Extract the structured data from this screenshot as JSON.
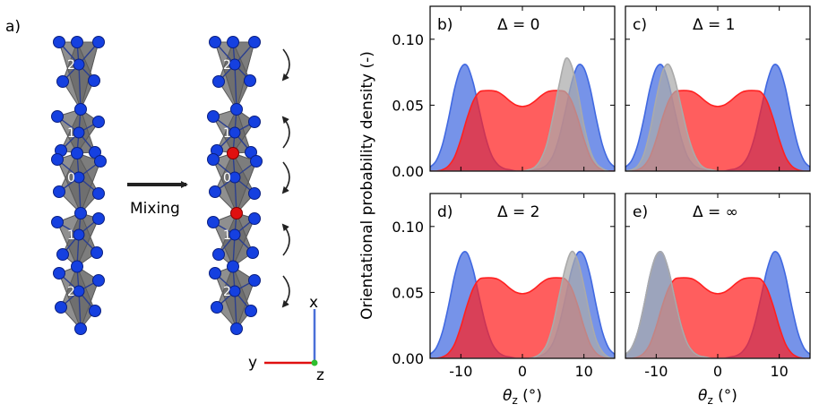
{
  "figure": {
    "panel_a_label": "a)",
    "mixing_label": "Mixing",
    "axes_triad": {
      "x_label": "x",
      "y_label": "y",
      "z_label": "z"
    },
    "chain_left_labels": [
      "2",
      "1",
      "0",
      "1",
      "2"
    ],
    "chain_right_labels": [
      "2",
      "1",
      "0",
      "1",
      "2"
    ],
    "colors": {
      "atom": "#1540e0",
      "highlight_atom": "#e01010",
      "octahedron": "#808080",
      "x_axis": "#4a6fd8",
      "y_axis": "#e01010",
      "z_axis": "#2fbf2f"
    }
  },
  "chart_data": [
    {
      "type": "area",
      "panel": "b)",
      "annotation": "Δ = 0",
      "ylabel": "Orientational probability density (-)",
      "xlabel": "θz (°)",
      "xlim": [
        -15,
        15
      ],
      "ylim": [
        0,
        0.125
      ],
      "xticks": [
        -10,
        0,
        10
      ],
      "yticks": [
        0.0,
        0.05,
        0.1
      ],
      "x": [
        -15,
        -14,
        -13,
        -12,
        -11,
        -10,
        -9,
        -8,
        -7,
        -6,
        -5,
        -4,
        -3,
        -2,
        -1,
        0,
        1,
        2,
        3,
        4,
        5,
        6,
        7,
        8,
        9,
        10,
        11,
        12,
        13,
        14,
        15
      ],
      "series": [
        {
          "color": "#4169e1",
          "values": [
            0.003,
            0.008,
            0.02,
            0.04,
            0.063,
            0.078,
            0.08,
            0.067,
            0.046,
            0.026,
            0.012,
            0.005,
            0.002,
            0.001,
            0.0,
            0.0,
            0.0,
            0.001,
            0.002,
            0.005,
            0.012,
            0.026,
            0.046,
            0.067,
            0.08,
            0.078,
            0.063,
            0.04,
            0.02,
            0.008,
            0.003
          ]
        },
        {
          "color": "#ff2020",
          "values": [
            0.0,
            0.0,
            0.001,
            0.004,
            0.011,
            0.024,
            0.04,
            0.053,
            0.06,
            0.061,
            0.061,
            0.06,
            0.057,
            0.053,
            0.05,
            0.049,
            0.05,
            0.053,
            0.057,
            0.06,
            0.061,
            0.061,
            0.06,
            0.053,
            0.04,
            0.024,
            0.011,
            0.004,
            0.001,
            0.0,
            0.0
          ]
        },
        {
          "color": "#aaaaaa",
          "values": [
            0.0,
            0.0,
            0.0,
            0.0,
            0.0,
            0.0,
            0.0,
            0.0,
            0.0,
            0.0,
            0.0,
            0.0,
            0.0,
            0.0,
            0.0,
            0.0,
            0.001,
            0.003,
            0.009,
            0.021,
            0.042,
            0.066,
            0.085,
            0.08,
            0.06,
            0.035,
            0.016,
            0.006,
            0.002,
            0.0,
            0.0
          ]
        }
      ]
    },
    {
      "type": "area",
      "panel": "c)",
      "annotation": "Δ = 1",
      "ylabel": "",
      "xlabel": "θz (°)",
      "xlim": [
        -15,
        15
      ],
      "ylim": [
        0,
        0.125
      ],
      "xticks": [
        -10,
        0,
        10
      ],
      "yticks": [
        0.0,
        0.05,
        0.1
      ],
      "x": [
        -15,
        -14,
        -13,
        -12,
        -11,
        -10,
        -9,
        -8,
        -7,
        -6,
        -5,
        -4,
        -3,
        -2,
        -1,
        0,
        1,
        2,
        3,
        4,
        5,
        6,
        7,
        8,
        9,
        10,
        11,
        12,
        13,
        14,
        15
      ],
      "series": [
        {
          "color": "#4169e1",
          "values": [
            0.003,
            0.008,
            0.02,
            0.04,
            0.063,
            0.078,
            0.08,
            0.067,
            0.046,
            0.026,
            0.012,
            0.005,
            0.002,
            0.001,
            0.0,
            0.0,
            0.0,
            0.001,
            0.002,
            0.005,
            0.012,
            0.026,
            0.046,
            0.067,
            0.08,
            0.078,
            0.063,
            0.04,
            0.02,
            0.008,
            0.003
          ]
        },
        {
          "color": "#ff2020",
          "values": [
            0.0,
            0.0,
            0.001,
            0.004,
            0.011,
            0.024,
            0.04,
            0.053,
            0.06,
            0.061,
            0.061,
            0.06,
            0.057,
            0.053,
            0.05,
            0.049,
            0.05,
            0.053,
            0.057,
            0.06,
            0.061,
            0.061,
            0.06,
            0.053,
            0.04,
            0.024,
            0.011,
            0.004,
            0.001,
            0.0,
            0.0
          ]
        },
        {
          "color": "#aaaaaa",
          "values": [
            0.0,
            0.001,
            0.004,
            0.013,
            0.031,
            0.055,
            0.075,
            0.081,
            0.07,
            0.05,
            0.03,
            0.015,
            0.006,
            0.002,
            0.001,
            0.0,
            0.0,
            0.0,
            0.0,
            0.0,
            0.0,
            0.0,
            0.0,
            0.0,
            0.0,
            0.0,
            0.0,
            0.0,
            0.0,
            0.0,
            0.0
          ]
        }
      ]
    },
    {
      "type": "area",
      "panel": "d)",
      "annotation": "Δ = 2",
      "ylabel": "",
      "xlabel": "θz (°)",
      "xlim": [
        -15,
        15
      ],
      "ylim": [
        0,
        0.125
      ],
      "xticks": [
        -10,
        0,
        10
      ],
      "yticks": [
        0.0,
        0.05,
        0.1
      ],
      "x": [
        -15,
        -14,
        -13,
        -12,
        -11,
        -10,
        -9,
        -8,
        -7,
        -6,
        -5,
        -4,
        -3,
        -2,
        -1,
        0,
        1,
        2,
        3,
        4,
        5,
        6,
        7,
        8,
        9,
        10,
        11,
        12,
        13,
        14,
        15
      ],
      "series": [
        {
          "color": "#4169e1",
          "values": [
            0.003,
            0.008,
            0.02,
            0.04,
            0.063,
            0.078,
            0.08,
            0.067,
            0.046,
            0.026,
            0.012,
            0.005,
            0.002,
            0.001,
            0.0,
            0.0,
            0.0,
            0.001,
            0.002,
            0.005,
            0.012,
            0.026,
            0.046,
            0.067,
            0.08,
            0.078,
            0.063,
            0.04,
            0.02,
            0.008,
            0.003
          ]
        },
        {
          "color": "#ff2020",
          "values": [
            0.0,
            0.0,
            0.001,
            0.004,
            0.011,
            0.024,
            0.04,
            0.053,
            0.06,
            0.061,
            0.061,
            0.06,
            0.057,
            0.053,
            0.05,
            0.049,
            0.05,
            0.053,
            0.057,
            0.06,
            0.061,
            0.061,
            0.06,
            0.053,
            0.04,
            0.024,
            0.011,
            0.004,
            0.001,
            0.0,
            0.0
          ]
        },
        {
          "color": "#aaaaaa",
          "values": [
            0.0,
            0.0,
            0.0,
            0.0,
            0.0,
            0.0,
            0.0,
            0.0,
            0.0,
            0.0,
            0.0,
            0.0,
            0.0,
            0.0,
            0.0,
            0.0,
            0.0,
            0.001,
            0.004,
            0.011,
            0.026,
            0.048,
            0.069,
            0.081,
            0.074,
            0.055,
            0.032,
            0.014,
            0.005,
            0.001,
            0.0
          ]
        }
      ]
    },
    {
      "type": "area",
      "panel": "e)",
      "annotation": "Δ = ∞",
      "ylabel": "",
      "xlabel": "θz (°)",
      "xlim": [
        -15,
        15
      ],
      "ylim": [
        0,
        0.125
      ],
      "xticks": [
        -10,
        0,
        10
      ],
      "yticks": [
        0.0,
        0.05,
        0.1
      ],
      "x": [
        -15,
        -14,
        -13,
        -12,
        -11,
        -10,
        -9,
        -8,
        -7,
        -6,
        -5,
        -4,
        -3,
        -2,
        -1,
        0,
        1,
        2,
        3,
        4,
        5,
        6,
        7,
        8,
        9,
        10,
        11,
        12,
        13,
        14,
        15
      ],
      "series": [
        {
          "color": "#4169e1",
          "values": [
            0.003,
            0.008,
            0.02,
            0.04,
            0.063,
            0.078,
            0.08,
            0.067,
            0.046,
            0.026,
            0.012,
            0.005,
            0.002,
            0.001,
            0.0,
            0.0,
            0.0,
            0.001,
            0.002,
            0.005,
            0.012,
            0.026,
            0.046,
            0.067,
            0.08,
            0.078,
            0.063,
            0.04,
            0.02,
            0.008,
            0.003
          ]
        },
        {
          "color": "#ff2020",
          "values": [
            0.0,
            0.0,
            0.001,
            0.004,
            0.011,
            0.024,
            0.04,
            0.053,
            0.06,
            0.061,
            0.061,
            0.06,
            0.057,
            0.053,
            0.05,
            0.049,
            0.05,
            0.053,
            0.057,
            0.06,
            0.061,
            0.061,
            0.06,
            0.053,
            0.04,
            0.024,
            0.011,
            0.004,
            0.001,
            0.0,
            0.0
          ]
        },
        {
          "color": "#aaaaaa",
          "values": [
            0.003,
            0.008,
            0.02,
            0.04,
            0.063,
            0.078,
            0.08,
            0.067,
            0.046,
            0.026,
            0.012,
            0.005,
            0.002,
            0.001,
            0.0,
            0.0,
            0.0,
            0.0,
            0.0,
            0.0,
            0.0,
            0.0,
            0.0,
            0.0,
            0.0,
            0.0,
            0.0,
            0.0,
            0.0,
            0.0,
            0.0
          ]
        }
      ]
    }
  ]
}
